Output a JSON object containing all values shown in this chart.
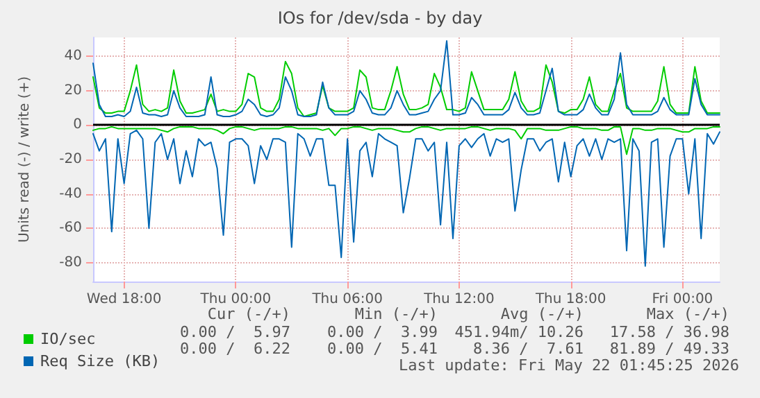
{
  "chart_data": {
    "type": "line",
    "title": "IOs for /dev/sda - by day",
    "ylabel": "Units read (-) / write (+)",
    "categories": [
      null,
      null,
      null,
      null,
      null,
      "Wed 18:00",
      null,
      null,
      null,
      null,
      null,
      null,
      null,
      null,
      null,
      null,
      null,
      null,
      null,
      null,
      null,
      null,
      null,
      "Thu 00:00",
      null,
      null,
      null,
      null,
      null,
      null,
      null,
      null,
      null,
      null,
      null,
      null,
      null,
      null,
      null,
      null,
      null,
      "Thu 06:00",
      null,
      null,
      null,
      null,
      null,
      null,
      null,
      null,
      null,
      null,
      null,
      null,
      null,
      null,
      null,
      null,
      null,
      "Thu 12:00",
      null,
      null,
      null,
      null,
      null,
      null,
      null,
      null,
      null,
      null,
      null,
      null,
      null,
      null,
      null,
      null,
      null,
      "Thu 18:00",
      null,
      null,
      null,
      null,
      null,
      null,
      null,
      null,
      null,
      null,
      null,
      null,
      null,
      null,
      null,
      null,
      null,
      "Fri 00:00",
      null,
      null,
      null,
      null,
      null,
      null
    ],
    "series": [
      {
        "name": "IO/sec",
        "color": "#00cc00",
        "values": [
          28,
          10,
          7,
          7,
          8,
          8,
          20,
          35,
          12,
          8,
          9,
          8,
          10,
          32,
          14,
          7,
          7,
          8,
          9,
          18,
          8,
          9,
          8,
          8,
          12,
          30,
          28,
          10,
          8,
          8,
          15,
          37,
          30,
          10,
          5,
          6,
          7,
          23,
          10,
          8,
          8,
          8,
          10,
          32,
          28,
          10,
          9,
          9,
          20,
          34,
          18,
          9,
          9,
          10,
          12,
          30,
          22,
          9,
          9,
          8,
          10,
          31,
          20,
          9,
          9,
          9,
          9,
          15,
          31,
          14,
          8,
          8,
          10,
          35,
          25,
          8,
          7,
          9,
          9,
          15,
          28,
          12,
          8,
          8,
          20,
          30,
          10,
          8,
          8,
          8,
          8,
          14,
          34,
          12,
          7,
          7,
          7,
          34,
          14,
          7,
          7,
          7
        ]
      },
      {
        "color": "#00cc00",
        "values": [
          -3,
          -2,
          -2,
          -1,
          -2,
          -2,
          -2,
          -2,
          -2,
          -2,
          -2,
          -3,
          -4,
          -2,
          -1,
          -1,
          -1,
          -2,
          -2,
          -2,
          -3,
          -5,
          -2,
          -1,
          -1,
          -2,
          -3,
          -2,
          -2,
          -2,
          -2,
          -1,
          -1,
          -2,
          -2,
          -2,
          -2,
          -3,
          -2,
          -6,
          -2,
          -2,
          -1,
          -1,
          -2,
          -3,
          -2,
          -2,
          -2,
          -3,
          -4,
          -4,
          -2,
          -1,
          -1,
          -2,
          -3,
          -2,
          -2,
          -2,
          -2,
          -1,
          -1,
          -2,
          -3,
          -2,
          -2,
          -2,
          -3,
          -8,
          -2,
          -2,
          -2,
          -3,
          -3,
          -3,
          -2,
          -1,
          -1,
          -2,
          -2,
          -2,
          -3,
          -3,
          -1,
          -1,
          -17,
          -2,
          -2,
          -3,
          -3,
          -2,
          -2,
          -2,
          -3,
          -4,
          -4,
          -2,
          -2,
          -2,
          -1,
          -1
        ]
      },
      {
        "name": "Req Size (KB)",
        "color": "#0066b3",
        "values": [
          36,
          12,
          5,
          5,
          6,
          5,
          8,
          22,
          7,
          6,
          6,
          5,
          6,
          20,
          10,
          5,
          5,
          5,
          6,
          28,
          6,
          5,
          5,
          6,
          8,
          15,
          12,
          6,
          5,
          6,
          10,
          28,
          20,
          6,
          5,
          5,
          6,
          25,
          10,
          6,
          6,
          6,
          8,
          20,
          15,
          7,
          6,
          6,
          10,
          20,
          12,
          6,
          6,
          7,
          8,
          15,
          20,
          49,
          6,
          6,
          7,
          16,
          12,
          6,
          6,
          6,
          6,
          9,
          19,
          10,
          6,
          6,
          7,
          20,
          33,
          8,
          6,
          6,
          6,
          9,
          18,
          10,
          6,
          6,
          15,
          42,
          12,
          6,
          6,
          6,
          6,
          8,
          16,
          9,
          6,
          6,
          6,
          27,
          12,
          6,
          6,
          6
        ]
      },
      {
        "color": "#0066b3",
        "values": [
          -5,
          -15,
          -8,
          -62,
          -8,
          -34,
          -5,
          -3,
          -8,
          -60,
          -10,
          -5,
          -20,
          -8,
          -34,
          -15,
          -30,
          -8,
          -12,
          -10,
          -25,
          -64,
          -10,
          -8,
          -8,
          -12,
          -34,
          -12,
          -20,
          -8,
          -8,
          -10,
          -71,
          -5,
          -8,
          -18,
          -8,
          -8,
          -35,
          -35,
          -77,
          -8,
          -68,
          -15,
          -10,
          -30,
          -5,
          -8,
          -10,
          -12,
          -51,
          -31,
          -8,
          -8,
          -15,
          -10,
          -58,
          -10,
          -66,
          -12,
          -8,
          -13,
          -8,
          -5,
          -18,
          -8,
          -10,
          -8,
          -50,
          -26,
          -8,
          -8,
          -15,
          -10,
          -8,
          -33,
          -10,
          -30,
          -12,
          -8,
          -18,
          -8,
          -20,
          -8,
          -10,
          -8,
          -73,
          -8,
          -15,
          -82,
          -10,
          -8,
          -71,
          -18,
          -8,
          -8,
          -40,
          -8,
          -66,
          -5,
          -11,
          -4
        ]
      }
    ],
    "ylim": [
      -91,
      51
    ],
    "yticks": [
      -80,
      -60,
      -40,
      -20,
      0,
      20,
      40
    ],
    "ref_lines": [
      {
        "axis": "y",
        "value": 0,
        "color": "#000000"
      }
    ],
    "grid": true,
    "legend": "bottom",
    "marker": "none",
    "line_style": "solid",
    "annotations": [
      "Cur (-/+)",
      "Min (-/+)",
      "Avg (-/+)",
      "Max (-/+)",
      "0.00 /  5.97",
      "0.00 /  3.99",
      "451.94m/ 10.26",
      "17.58 / 36.98",
      "0.00 /  6.22",
      "0.00 /  5.41",
      "8.36 /  7.61",
      "81.89 / 49.33",
      "Last update: Fri May 22 01:45:25 2026"
    ]
  }
}
